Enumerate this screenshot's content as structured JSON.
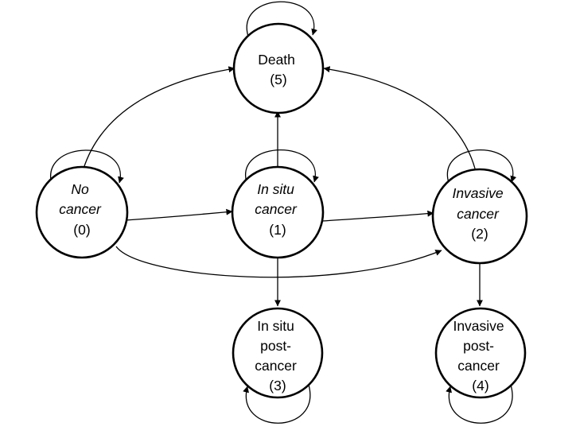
{
  "nodes": [
    {
      "id": "death",
      "lines": [
        "Death",
        "(5)"
      ],
      "italic": [
        false,
        false
      ]
    },
    {
      "id": "no-cancer",
      "lines": [
        "No",
        "cancer",
        "(0)"
      ],
      "italic": [
        true,
        true,
        false
      ]
    },
    {
      "id": "in-situ",
      "lines": [
        "In situ",
        "cancer",
        "(1)"
      ],
      "italic": [
        true,
        true,
        false
      ]
    },
    {
      "id": "invasive",
      "lines": [
        "Invasive",
        "cancer",
        "(2)"
      ],
      "italic": [
        true,
        true,
        false
      ]
    },
    {
      "id": "in-situ-post",
      "lines": [
        "In situ",
        "post-",
        "cancer",
        "(3)"
      ],
      "italic": [
        false,
        false,
        false,
        false
      ]
    },
    {
      "id": "invasive-post",
      "lines": [
        "Invasive",
        "post-",
        "cancer",
        "(4)"
      ],
      "italic": [
        false,
        false,
        false,
        false
      ]
    }
  ],
  "edges": [
    {
      "from": "no-cancer",
      "to": "death"
    },
    {
      "from": "no-cancer",
      "to": "in-situ"
    },
    {
      "from": "no-cancer",
      "to": "invasive"
    },
    {
      "from": "in-situ",
      "to": "death"
    },
    {
      "from": "in-situ",
      "to": "invasive"
    },
    {
      "from": "in-situ",
      "to": "in-situ-post"
    },
    {
      "from": "invasive",
      "to": "death"
    },
    {
      "from": "invasive",
      "to": "invasive-post"
    }
  ],
  "self_loops": [
    "death",
    "no-cancer",
    "in-situ",
    "invasive",
    "in-situ-post",
    "invasive-post"
  ]
}
